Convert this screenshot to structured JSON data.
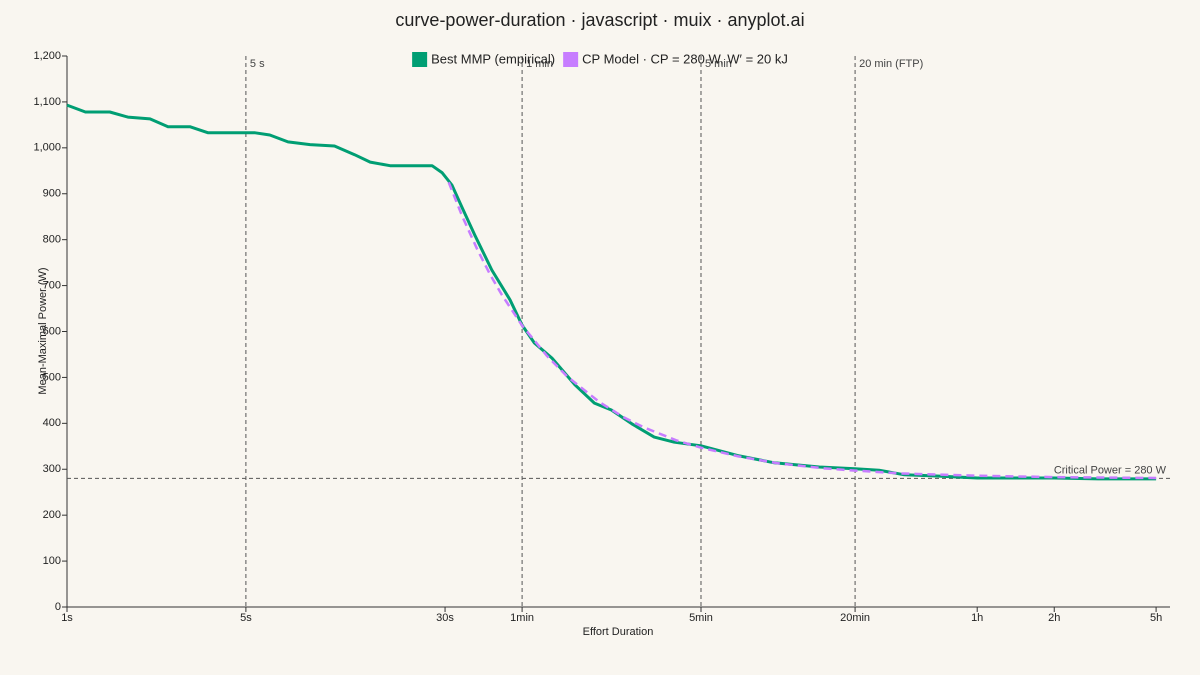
{
  "chart_data": {
    "type": "line",
    "title": "curve-power-duration · javascript · muix · anyplot.ai",
    "x_label": "Effort Duration",
    "y_label": "Mean-Maximal Power (W)",
    "xscale": "log",
    "xlim": [
      1,
      20400
    ],
    "ylim": [
      0,
      1200
    ],
    "xticks": [
      {
        "value": 1,
        "label": "1s"
      },
      {
        "value": 5,
        "label": "5s"
      },
      {
        "value": 30,
        "label": "30s"
      },
      {
        "value": 60,
        "label": "1min"
      },
      {
        "value": 300,
        "label": "5min"
      },
      {
        "value": 1200,
        "label": "20min"
      },
      {
        "value": 3600,
        "label": "1h"
      },
      {
        "value": 7200,
        "label": "2h"
      },
      {
        "value": 18000,
        "label": "5h"
      }
    ],
    "yticks": [
      0,
      100,
      200,
      300,
      400,
      500,
      600,
      700,
      800,
      900,
      {
        "value": 1000,
        "label": "1,000"
      },
      {
        "value": 1100,
        "label": "1,100"
      },
      {
        "value": 1200,
        "label": "1,200"
      }
    ],
    "legend": "top",
    "vlines": [
      {
        "x": 5,
        "label": "5 s"
      },
      {
        "x": 60,
        "label": "1 min"
      },
      {
        "x": 300,
        "label": "5 min"
      },
      {
        "x": 1200,
        "label": "20 min (FTP)"
      }
    ],
    "hline": {
      "y": 280,
      "label": "Critical Power = 280 W"
    },
    "series": [
      {
        "name": "Best MMP (empirical)",
        "color": "#009e73",
        "dash": false,
        "x": [
          1,
          1.18,
          1.47,
          1.73,
          2.11,
          2.48,
          3.02,
          3.55,
          5.4,
          6.2,
          7.3,
          8.9,
          11.1,
          13.3,
          15.3,
          18.3,
          26.7,
          29.2,
          31.9,
          34.9,
          39.2,
          45.7,
          53.8,
          60,
          67,
          78.5,
          96.5,
          115,
          134,
          161,
          197,
          236,
          300,
          423,
          580,
          870,
          1200,
          1490,
          1870,
          2560,
          3600,
          7200,
          10700,
          18000
        ],
        "values": [
          1093,
          1078,
          1078,
          1067,
          1063,
          1046,
          1046,
          1033,
          1033,
          1028,
          1013,
          1007,
          1004,
          985,
          969,
          961,
          961,
          946,
          919,
          871,
          810,
          734,
          669,
          614,
          575,
          542,
          484,
          444,
          429,
          399,
          370,
          359,
          351,
          329,
          314,
          305,
          301,
          298,
          288,
          285,
          281,
          281,
          279,
          279
        ]
      },
      {
        "name": "CP Model · CP = 280 W, W′ = 20 kJ",
        "color": "#c77dff",
        "dash": true,
        "x": [
          31,
          35,
          40,
          45,
          50,
          60,
          75,
          90,
          120,
          150,
          180,
          240,
          300,
          420,
          600,
          900,
          1200,
          1800,
          3600,
          7200,
          10800,
          18000
        ],
        "values": [
          925,
          851,
          780,
          724,
          680,
          613,
          547,
          502,
          447,
          413,
          391,
          363,
          347,
          328,
          313,
          302,
          297,
          291,
          286,
          283,
          282,
          281
        ]
      }
    ]
  }
}
